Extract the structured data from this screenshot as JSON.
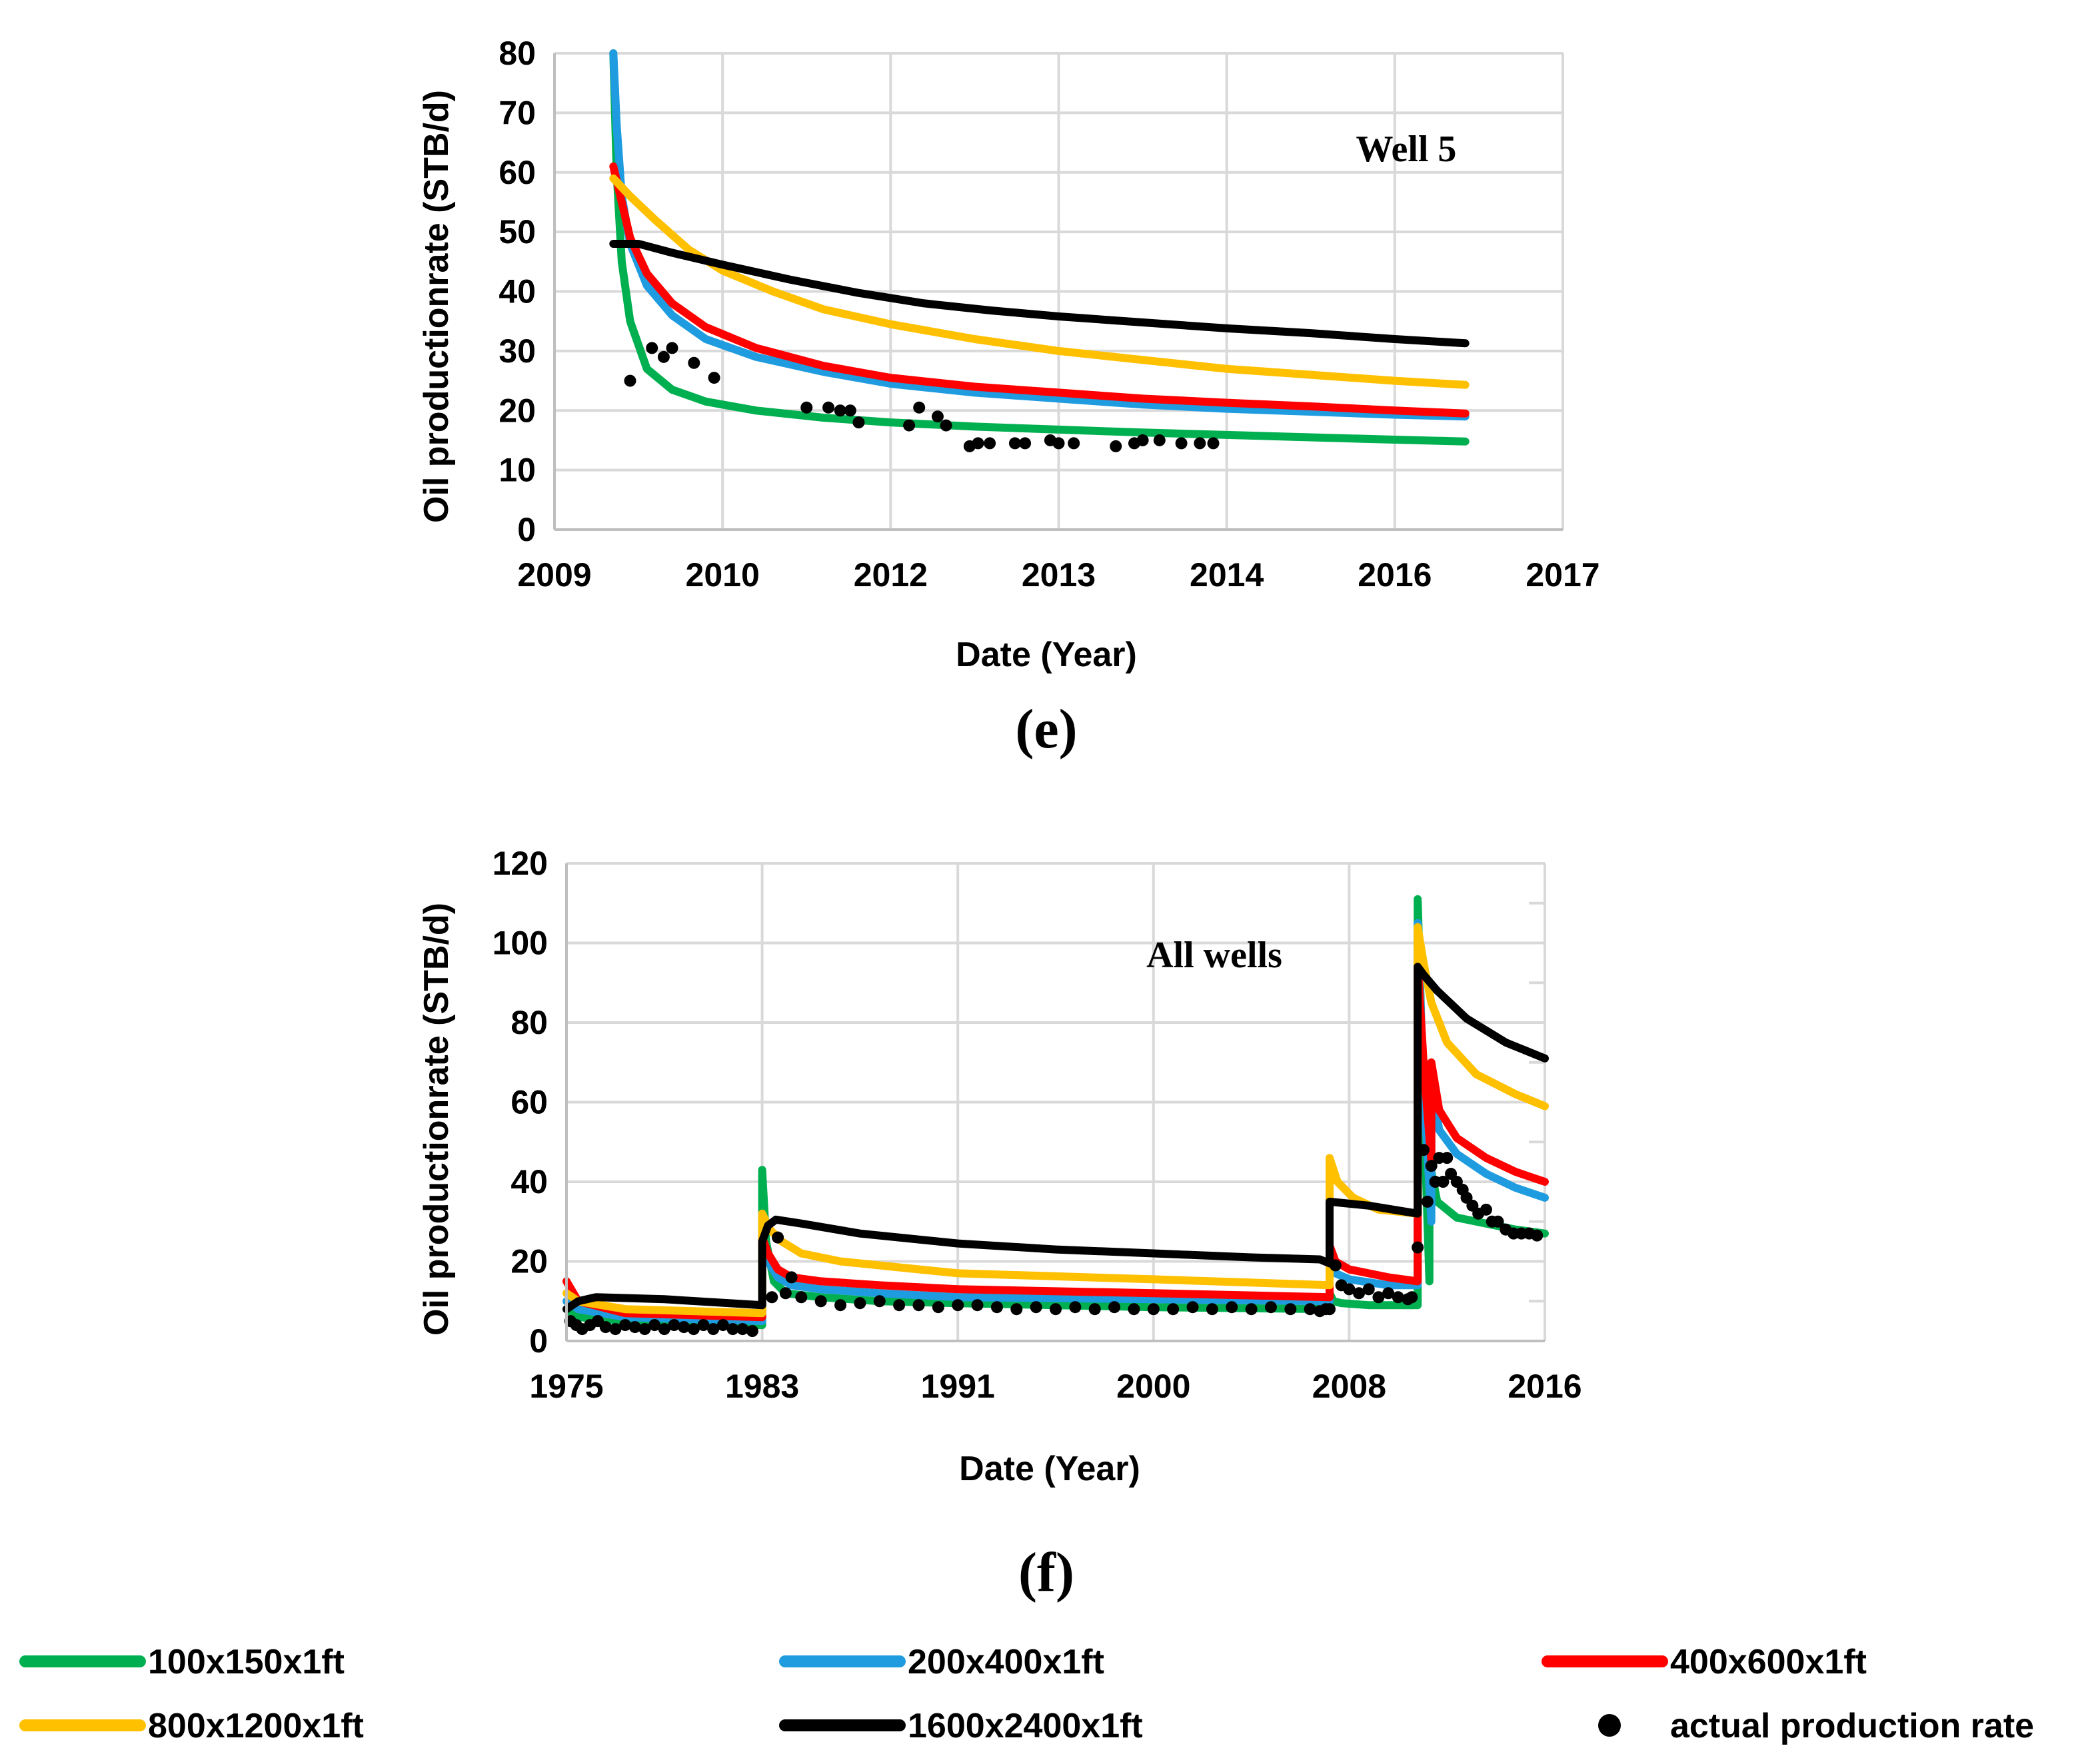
{
  "colors": {
    "s100x150": "#00b050",
    "s200x400": "#1f9be0",
    "s400x600": "#ff0000",
    "s800x1200": "#ffc000",
    "s1600x2400": "#000000",
    "actual": "#000000",
    "grid": "#d9d9d9"
  },
  "legend": {
    "items": [
      {
        "key": "s100x150",
        "label": "100x150x1ft",
        "kind": "line"
      },
      {
        "key": "s200x400",
        "label": "200x400x1ft",
        "kind": "line"
      },
      {
        "key": "s400x600",
        "label": "400x600x1ft",
        "kind": "line"
      },
      {
        "key": "s800x1200",
        "label": "800x1200x1ft",
        "kind": "line"
      },
      {
        "key": "s1600x2400",
        "label": "1600x2400x1ft",
        "kind": "line"
      },
      {
        "key": "actual",
        "label": "actual production rate",
        "kind": "marker"
      }
    ]
  },
  "chart_data": [
    {
      "type": "line",
      "panel": "(e)",
      "annotation": "Well 5",
      "xlabel": "Date (Year)",
      "ylabel": "Oil productionrate (STB/d)",
      "x_tick_labels": [
        "2009",
        "2010",
        "2012",
        "2013",
        "2014",
        "2016",
        "2017"
      ],
      "y_ticks": [
        0,
        10,
        20,
        30,
        40,
        50,
        60,
        70,
        80
      ],
      "xlim": [
        0,
        6
      ],
      "ylim": [
        0,
        80
      ],
      "grid": true,
      "series": [
        {
          "name": "100x150x1ft",
          "key": "s100x150",
          "x": [
            0.35,
            0.37,
            0.4,
            0.45,
            0.55,
            0.7,
            0.9,
            1.2,
            1.6,
            2.0,
            2.5,
            3.0,
            3.5,
            4.0,
            4.5,
            5.0,
            5.42
          ],
          "y": [
            80,
            60,
            45,
            35,
            27,
            23.5,
            21.5,
            20,
            18.8,
            18,
            17.3,
            16.8,
            16.3,
            15.9,
            15.5,
            15.1,
            14.8
          ]
        },
        {
          "name": "200x400x1ft",
          "key": "s200x400",
          "x": [
            0.35,
            0.37,
            0.4,
            0.45,
            0.55,
            0.7,
            0.9,
            1.2,
            1.6,
            2.0,
            2.5,
            3.0,
            3.5,
            4.0,
            4.5,
            5.0,
            5.42
          ],
          "y": [
            80,
            68,
            56,
            48,
            41,
            36,
            32,
            29,
            26.5,
            24.5,
            23,
            22,
            21,
            20.3,
            19.8,
            19.3,
            19
          ]
        },
        {
          "name": "400x600x1ft",
          "key": "s400x600",
          "x": [
            0.35,
            0.4,
            0.45,
            0.55,
            0.7,
            0.9,
            1.2,
            1.6,
            2.0,
            2.5,
            3.0,
            3.5,
            4.0,
            4.5,
            5.0,
            5.42
          ],
          "y": [
            61,
            55,
            49,
            43,
            38,
            34,
            30.5,
            27.5,
            25.5,
            24,
            23,
            22,
            21.3,
            20.7,
            20,
            19.5
          ]
        },
        {
          "name": "800x1200x1ft",
          "key": "s800x1200",
          "x": [
            0.35,
            0.45,
            0.6,
            0.8,
            1.0,
            1.3,
            1.6,
            2.0,
            2.5,
            3.0,
            3.5,
            4.0,
            4.5,
            5.0,
            5.42
          ],
          "y": [
            59,
            56,
            52,
            47,
            43.5,
            40,
            37,
            34.5,
            32,
            30,
            28.5,
            27,
            26,
            25,
            24.3
          ]
        },
        {
          "name": "1600x2400x1ft",
          "key": "s1600x2400",
          "x": [
            0.35,
            0.5,
            0.7,
            1.0,
            1.4,
            1.8,
            2.2,
            2.6,
            3.0,
            3.5,
            4.0,
            4.5,
            5.0,
            5.42
          ],
          "y": [
            48,
            48,
            46.5,
            44.5,
            42,
            39.8,
            38,
            36.8,
            35.8,
            34.8,
            33.8,
            33,
            32,
            31.3
          ]
        },
        {
          "name": "actual production rate",
          "key": "actual",
          "kind": "scatter",
          "x": [
            0.45,
            0.58,
            0.65,
            0.7,
            0.83,
            0.95,
            1.5,
            1.63,
            1.7,
            1.76,
            1.81,
            2.11,
            2.17,
            2.28,
            2.33,
            2.47,
            2.52,
            2.59,
            2.74,
            2.8,
            2.95,
            3.0,
            3.09,
            3.34,
            3.45,
            3.5,
            3.6,
            3.73,
            3.84,
            3.92
          ],
          "y": [
            25,
            30.5,
            29,
            30.5,
            28,
            25.5,
            20.5,
            20.5,
            20,
            20,
            18,
            17.5,
            20.5,
            19,
            17.5,
            14,
            14.5,
            14.5,
            14.5,
            14.5,
            15,
            14.5,
            14.5,
            14,
            14.5,
            15,
            15,
            14.5,
            14.5,
            14.5
          ]
        }
      ]
    },
    {
      "type": "line",
      "panel": "(f)",
      "annotation": "All wells",
      "xlabel": "Date (Year)",
      "ylabel": "Oil productionrate (STB/d)",
      "x_tick_labels": [
        "1975",
        "1983",
        "1991",
        "2000",
        "2008",
        "2016"
      ],
      "y_ticks": [
        0,
        20,
        40,
        60,
        80,
        100,
        120
      ],
      "xlim": [
        0,
        5
      ],
      "ylim": [
        0,
        120
      ],
      "grid": true,
      "series": [
        {
          "name": "100x150x1ft",
          "key": "s100x150",
          "x": [
            0.0,
            0.06,
            0.3,
            1.0,
            1.0,
            1.02,
            1.06,
            1.12,
            1.3,
            1.6,
            2.0,
            3.0,
            3.9,
            3.9,
            3.92,
            3.96,
            4.1,
            4.35,
            4.35,
            4.38,
            4.41,
            4.41,
            4.45,
            4.55,
            4.7,
            4.85,
            5.0
          ],
          "y": [
            8,
            6,
            5,
            4,
            43,
            25,
            15,
            12,
            11,
            10,
            9.5,
            8.5,
            8,
            12,
            10,
            9.5,
            9,
            9,
            111,
            60,
            15,
            45,
            35,
            31,
            29.5,
            28,
            27
          ]
        },
        {
          "name": "200x400x1ft",
          "key": "s200x400",
          "x": [
            0.0,
            0.06,
            0.3,
            1.0,
            1.0,
            1.03,
            1.08,
            1.15,
            1.3,
            1.6,
            2.0,
            3.0,
            3.9,
            3.9,
            3.93,
            4.0,
            4.2,
            4.35,
            4.35,
            4.38,
            4.42,
            4.42,
            4.46,
            4.55,
            4.7,
            4.85,
            5.0
          ],
          "y": [
            10,
            8,
            6,
            5,
            25,
            20,
            16,
            14,
            13,
            12,
            11,
            10.5,
            10,
            20,
            17,
            15.5,
            14,
            14,
            105,
            64,
            30,
            65,
            53,
            47,
            42,
            38.5,
            36
          ]
        },
        {
          "name": "400x600x1ft",
          "key": "s400x600",
          "x": [
            0.0,
            0.06,
            0.3,
            1.0,
            1.0,
            1.03,
            1.08,
            1.15,
            1.3,
            1.6,
            2.0,
            3.0,
            3.9,
            3.9,
            3.93,
            4.0,
            4.2,
            4.35,
            4.35,
            4.38,
            4.42,
            4.42,
            4.46,
            4.55,
            4.7,
            4.85,
            5.0
          ],
          "y": [
            15,
            10,
            7,
            6,
            26,
            22,
            18,
            16,
            15,
            14,
            13,
            12,
            11,
            24,
            20,
            18,
            16,
            15,
            95,
            70,
            45,
            70,
            58,
            51,
            46,
            42.5,
            40
          ]
        },
        {
          "name": "800x1200x1ft",
          "key": "s800x1200",
          "x": [
            0.0,
            0.06,
            0.3,
            1.0,
            1.0,
            1.04,
            1.1,
            1.2,
            1.4,
            1.7,
            2.0,
            3.0,
            3.9,
            3.9,
            3.94,
            4.02,
            4.15,
            4.35,
            4.35,
            4.38,
            4.42,
            4.5,
            4.65,
            4.85,
            5.0
          ],
          "y": [
            12,
            10,
            8,
            7,
            32,
            28,
            25,
            22,
            20,
            18.5,
            17,
            15.5,
            14,
            46,
            40,
            36,
            33,
            32,
            104,
            95,
            85,
            75,
            67,
            62,
            59
          ]
        },
        {
          "name": "1600x2400x1ft",
          "key": "s1600x2400",
          "x": [
            0.0,
            0.06,
            0.15,
            0.5,
            1.0,
            1.0,
            1.03,
            1.07,
            1.2,
            1.5,
            2.0,
            2.5,
            3.0,
            3.5,
            3.85,
            3.9,
            3.9,
            4.1,
            4.35,
            4.35,
            4.38,
            4.45,
            4.6,
            4.8,
            5.0
          ],
          "y": [
            8,
            10,
            11,
            10.5,
            9,
            25,
            29,
            30.5,
            29.5,
            27,
            24.5,
            23,
            22,
            21,
            20.5,
            19.5,
            35,
            34,
            32,
            94,
            92,
            88,
            81,
            75,
            71
          ]
        },
        {
          "name": "actual production rate",
          "key": "actual",
          "kind": "scatter",
          "x": [
            0.02,
            0.05,
            0.08,
            0.12,
            0.16,
            0.2,
            0.25,
            0.3,
            0.35,
            0.4,
            0.45,
            0.5,
            0.55,
            0.6,
            0.65,
            0.7,
            0.75,
            0.8,
            0.85,
            0.9,
            0.95,
            1.05,
            1.08,
            1.12,
            1.15,
            1.2,
            1.3,
            1.4,
            1.5,
            1.6,
            1.7,
            1.8,
            1.9,
            2.0,
            2.1,
            2.2,
            2.3,
            2.4,
            2.5,
            2.6,
            2.7,
            2.8,
            2.9,
            3.0,
            3.1,
            3.2,
            3.3,
            3.4,
            3.5,
            3.6,
            3.7,
            3.8,
            3.85,
            3.88,
            3.9,
            3.93,
            3.96,
            4.0,
            4.05,
            4.1,
            4.15,
            4.2,
            4.25,
            4.3,
            4.32,
            4.35,
            4.38,
            4.4,
            4.42,
            4.44,
            4.46,
            4.48,
            4.5,
            4.52,
            4.55,
            4.58,
            4.6,
            4.63,
            4.66,
            4.7,
            4.73,
            4.76,
            4.8,
            4.84,
            4.88,
            4.92,
            4.96
          ],
          "y": [
            5,
            4,
            3,
            4,
            5,
            3.5,
            3,
            4,
            3.5,
            3,
            4,
            3,
            4,
            3.5,
            3,
            4,
            3,
            4,
            3,
            3,
            2.5,
            11,
            26,
            12,
            16,
            11,
            10,
            9,
            9.5,
            10,
            9,
            9,
            8.5,
            9,
            9,
            8.5,
            8,
            8.5,
            8,
            8.5,
            8,
            8.5,
            8,
            8,
            8,
            8.5,
            8,
            8.5,
            8,
            8.5,
            8,
            8,
            7.5,
            8,
            8,
            19,
            14,
            13,
            12,
            13,
            11,
            12,
            11,
            10.5,
            11,
            23.5,
            48,
            35,
            44,
            40,
            46,
            40,
            46,
            42,
            40,
            38,
            36,
            34,
            32,
            33,
            30,
            30,
            28,
            27,
            27,
            27,
            26.5
          ]
        }
      ]
    }
  ]
}
